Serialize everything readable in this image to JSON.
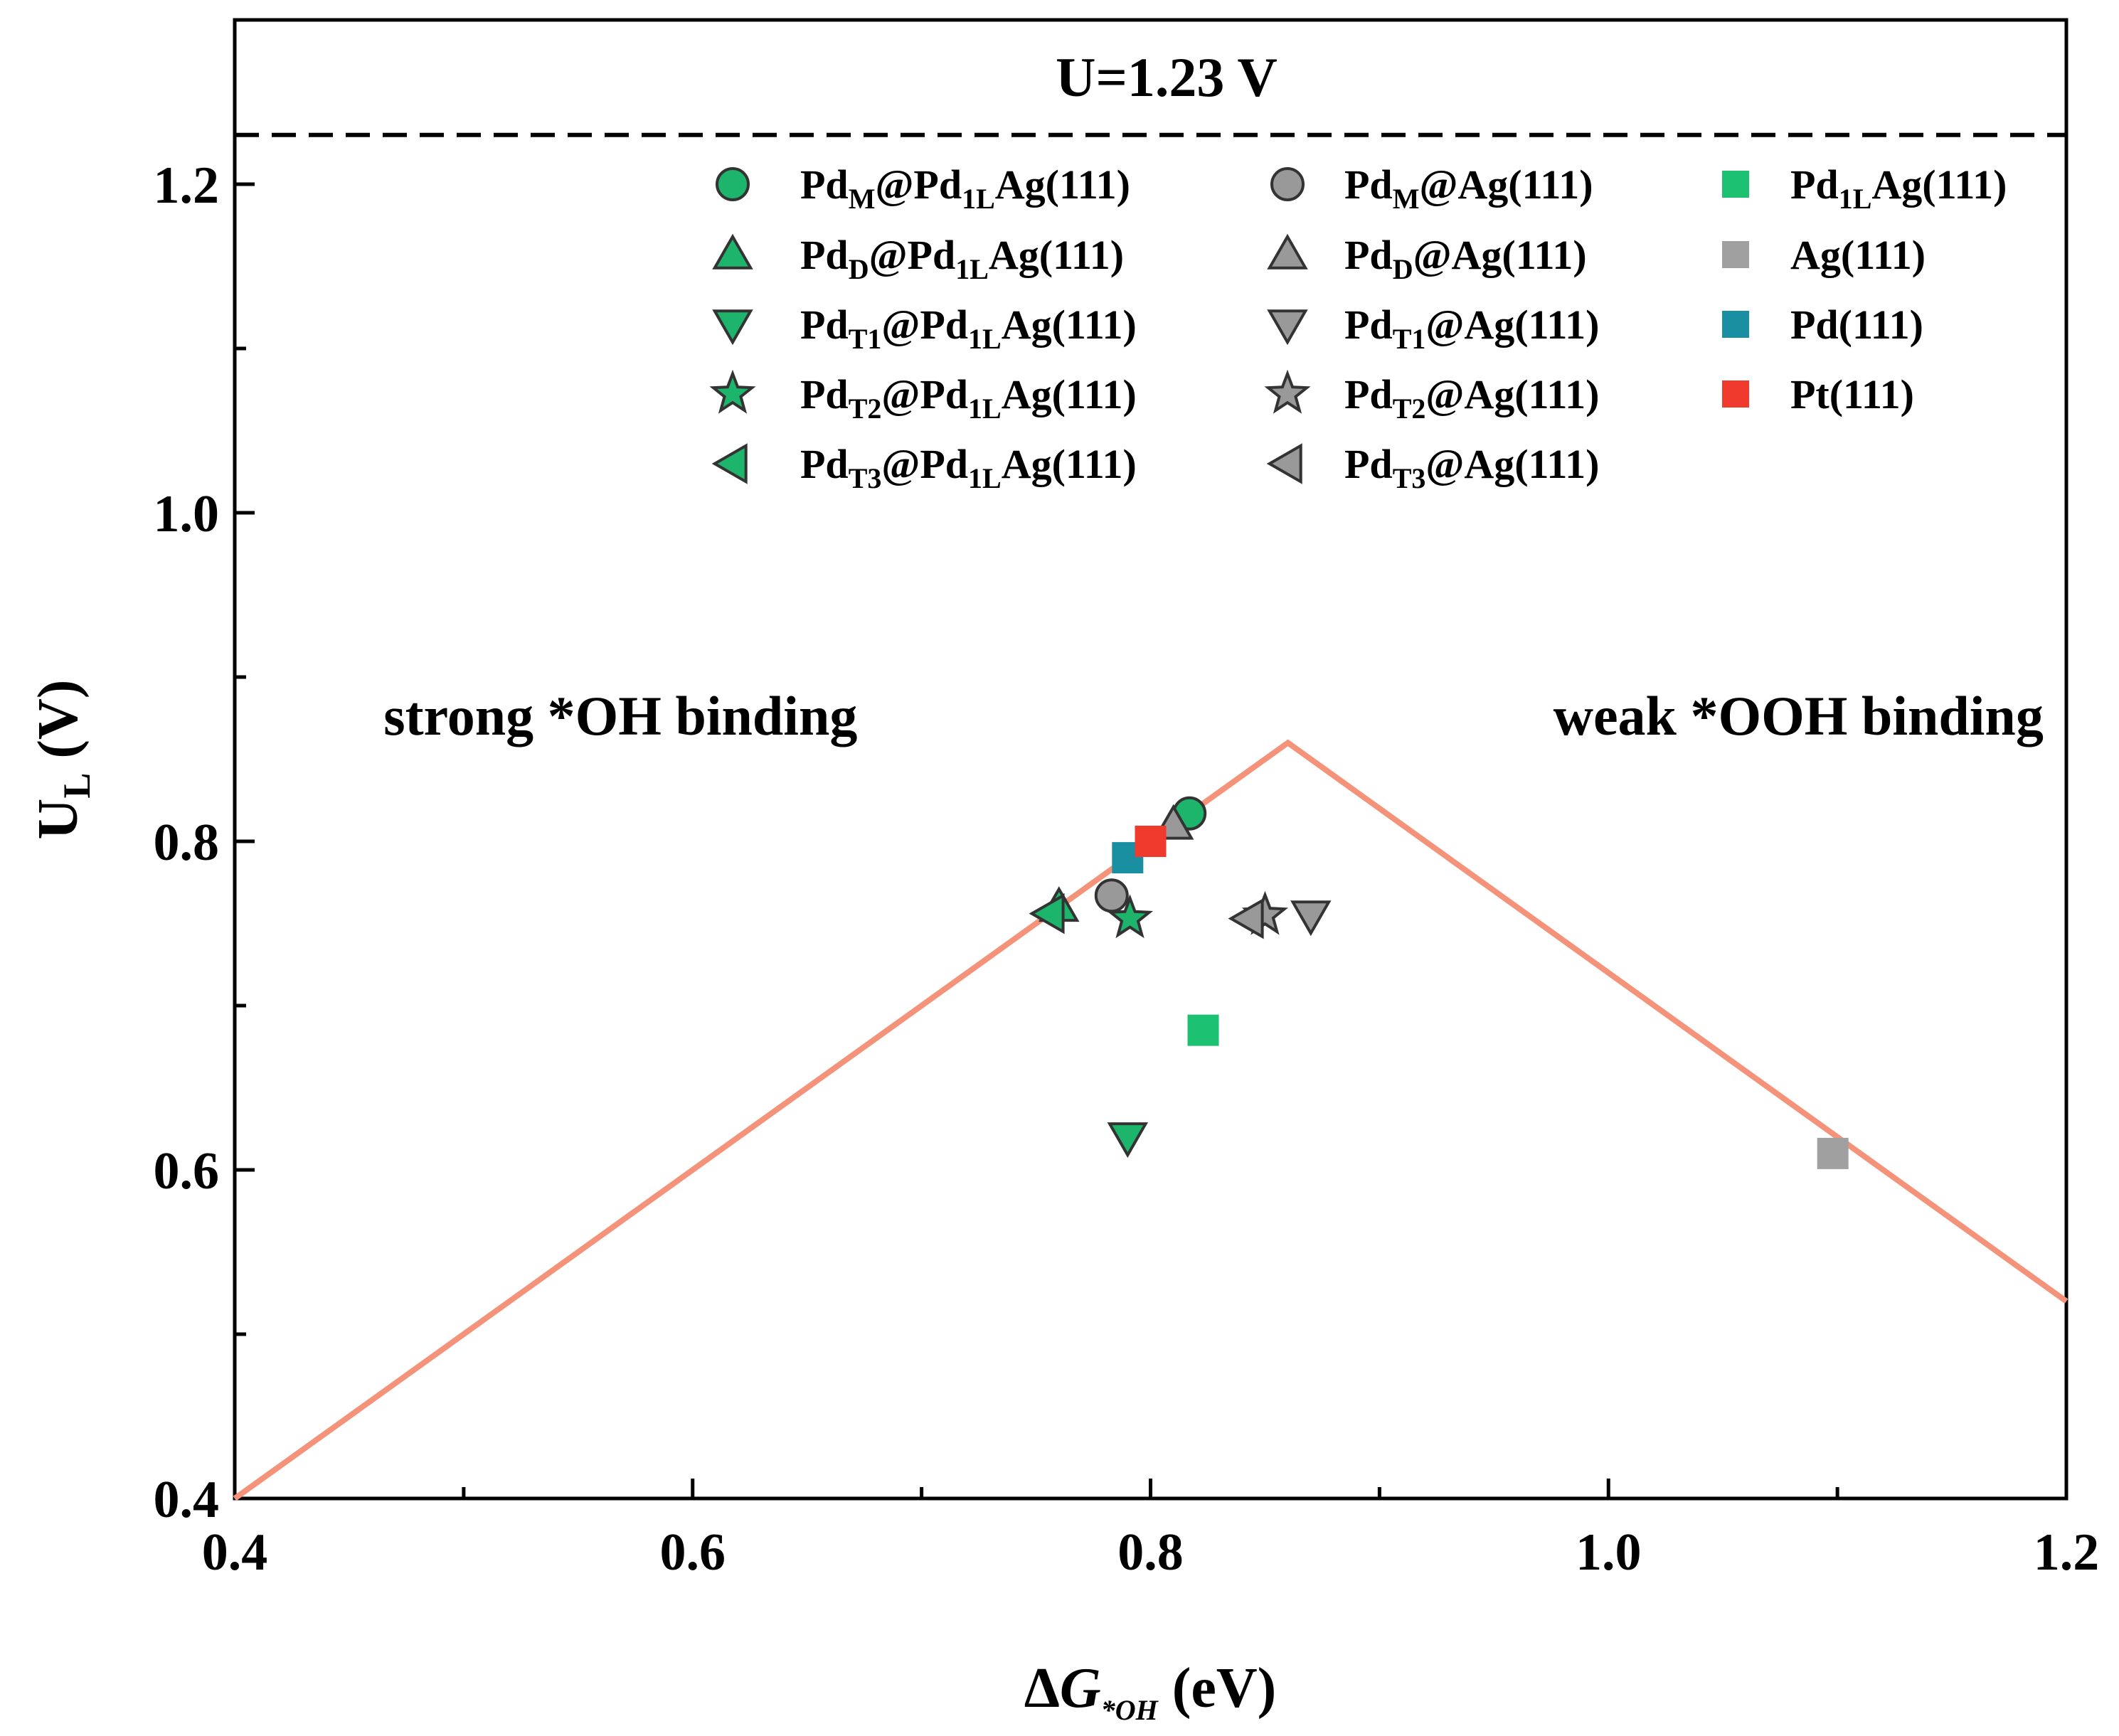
{
  "chart_data": {
    "type": "scatter",
    "xlabel": {
      "symbol": "ΔG",
      "sub": "*OH",
      "unit": " (eV)"
    },
    "ylabel": {
      "main": "U",
      "sub": "L",
      "unit": " (V)"
    },
    "xlim": [
      0.4,
      1.2
    ],
    "ylim": [
      0.4,
      1.3
    ],
    "x_ticks": [
      0.4,
      0.6,
      0.8,
      1.0,
      1.2
    ],
    "x_tick_labels": [
      "0.4",
      "0.6",
      "0.8",
      "1.0",
      "1.2"
    ],
    "x_minor_ticks": [
      0.5,
      0.7,
      0.9,
      1.1
    ],
    "y_ticks": [
      0.4,
      0.6,
      0.8,
      1.0,
      1.2
    ],
    "y_tick_labels": [
      "0.4",
      "0.6",
      "0.8",
      "1.0",
      "1.2"
    ],
    "y_minor_ticks": [
      0.5,
      0.7,
      0.9,
      1.1
    ],
    "reference_line": {
      "y": 1.23,
      "label": "U=1.23 V",
      "style": "dashed"
    },
    "volcano": {
      "points": [
        [
          0.4,
          0.4
        ],
        [
          0.86,
          0.86
        ],
        [
          1.2,
          0.52
        ]
      ],
      "color": "#F4937A"
    },
    "annotations": [
      {
        "text": "strong *OH binding",
        "x": 0.465,
        "y": 0.865
      },
      {
        "text": "weak *OOH binding",
        "x": 1.19,
        "y": 0.865
      }
    ],
    "series": [
      {
        "label": {
          "a": "Pd",
          "as": "M",
          "b": "@Pd",
          "bs": "1L",
          "c": "Ag(111)"
        },
        "marker": "circle",
        "color": "#1DB46B",
        "x": 0.817,
        "y": 0.817
      },
      {
        "label": {
          "a": "Pd",
          "as": "D",
          "b": "@Pd",
          "bs": "1L",
          "c": "Ag(111)"
        },
        "marker": "triangle-up",
        "color": "#1DB46B",
        "x": 0.76,
        "y": 0.76
      },
      {
        "label": {
          "a": "Pd",
          "as": "T1",
          "b": "@Pd",
          "bs": "1L",
          "c": "Ag(111)"
        },
        "marker": "triangle-down",
        "color": "#1DB46B",
        "x": 0.79,
        "y": 0.62
      },
      {
        "label": {
          "a": "Pd",
          "as": "T2",
          "b": "@Pd",
          "bs": "1L",
          "c": "Ag(111)"
        },
        "marker": "star",
        "color": "#1DB46B",
        "x": 0.791,
        "y": 0.753
      },
      {
        "label": {
          "a": "Pd",
          "as": "T3",
          "b": "@Pd",
          "bs": "1L",
          "c": "Ag(111)"
        },
        "marker": "triangle-left",
        "color": "#1DB46B",
        "x": 0.756,
        "y": 0.756
      },
      {
        "label": {
          "a": "Pd",
          "as": "M",
          "b": "@Ag(111)",
          "bs": "",
          "c": ""
        },
        "marker": "circle",
        "color": "#999999",
        "x": 0.783,
        "y": 0.767
      },
      {
        "label": {
          "a": "Pd",
          "as": "D",
          "b": "@Ag(111)",
          "bs": "",
          "c": ""
        },
        "marker": "triangle-up",
        "color": "#999999",
        "x": 0.81,
        "y": 0.81
      },
      {
        "label": {
          "a": "Pd",
          "as": "T1",
          "b": "@Ag(111)",
          "bs": "",
          "c": ""
        },
        "marker": "triangle-down",
        "color": "#999999",
        "x": 0.87,
        "y": 0.755
      },
      {
        "label": {
          "a": "Pd",
          "as": "T2",
          "b": "@Ag(111)",
          "bs": "",
          "c": ""
        },
        "marker": "star",
        "color": "#999999",
        "x": 0.85,
        "y": 0.755
      },
      {
        "label": {
          "a": "Pd",
          "as": "T3",
          "b": "@Ag(111)",
          "bs": "",
          "c": ""
        },
        "marker": "triangle-left",
        "color": "#999999",
        "x": 0.843,
        "y": 0.753
      },
      {
        "label": {
          "a": "Pd",
          "as": "1L",
          "b": "Ag(111)",
          "bs": "",
          "c": ""
        },
        "marker": "square",
        "color": "#1DC172",
        "x": 0.823,
        "y": 0.685
      },
      {
        "label": {
          "a": "Ag(111)",
          "as": "",
          "b": "",
          "bs": "",
          "c": ""
        },
        "marker": "square",
        "color": "#A0A0A0",
        "x": 1.098,
        "y": 0.61
      },
      {
        "label": {
          "a": "Pd(111)",
          "as": "",
          "b": "",
          "bs": "",
          "c": ""
        },
        "marker": "square",
        "color": "#1A8FA1",
        "x": 0.79,
        "y": 0.79
      },
      {
        "label": {
          "a": "Pt(111)",
          "as": "",
          "b": "",
          "bs": "",
          "c": ""
        },
        "marker": "square",
        "color": "#F03A2E",
        "x": 0.8,
        "y": 0.8
      }
    ]
  }
}
